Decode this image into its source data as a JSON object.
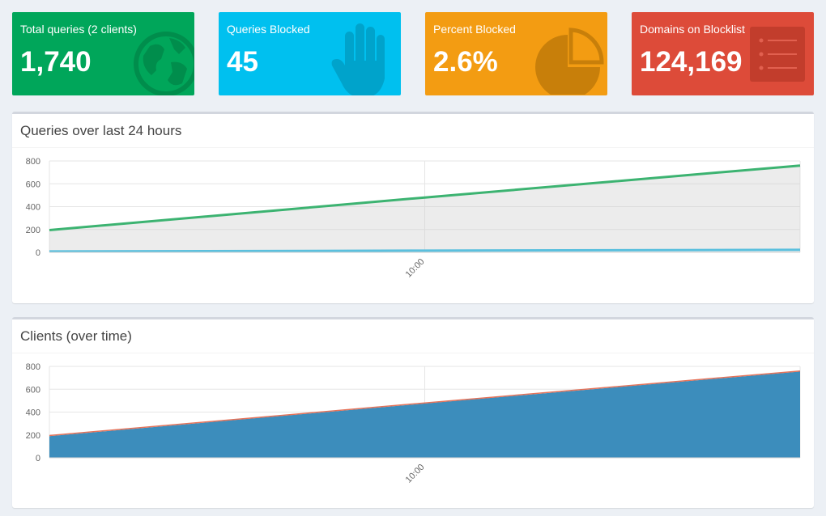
{
  "tiles": [
    {
      "label": "Total queries (2 clients)",
      "value": "1,740",
      "color": "#00a65a",
      "icon": "globe-icon"
    },
    {
      "label": "Queries Blocked",
      "value": "45",
      "color": "#00c0ef",
      "icon": "hand-icon"
    },
    {
      "label": "Percent Blocked",
      "value": "2.6%",
      "color": "#f39c12",
      "icon": "pie-chart-icon"
    },
    {
      "label": "Domains on Blocklist",
      "value": "124,169",
      "color": "#dd4b39",
      "icon": "list-icon"
    }
  ],
  "chart_data": [
    {
      "type": "line",
      "title": "Queries over last 24 hours",
      "x_ticks": [
        "10:00"
      ],
      "ylim": [
        0,
        800
      ],
      "y_ticks": [
        0,
        200,
        400,
        600,
        800
      ],
      "grid": true,
      "series": [
        {
          "color": "#3cb371",
          "x": [
            0,
            0.5,
            1
          ],
          "values": [
            195,
            480,
            760
          ]
        },
        {
          "color": "#5bc0de",
          "x": [
            0,
            0.5,
            1
          ],
          "values": [
            8,
            15,
            22
          ]
        }
      ]
    },
    {
      "type": "area",
      "title": "Clients (over time)",
      "x_ticks": [
        "10:00"
      ],
      "ylim": [
        0,
        800
      ],
      "y_ticks": [
        0,
        200,
        400,
        600,
        800
      ],
      "grid": true,
      "series": [
        {
          "color": "#3c8dbc",
          "x": [
            0,
            0.5,
            1
          ],
          "values": [
            190,
            475,
            755
          ]
        },
        {
          "color": "#e5735a",
          "x": [
            0,
            0.5,
            1
          ],
          "values": [
            195,
            480,
            760
          ]
        }
      ]
    }
  ]
}
